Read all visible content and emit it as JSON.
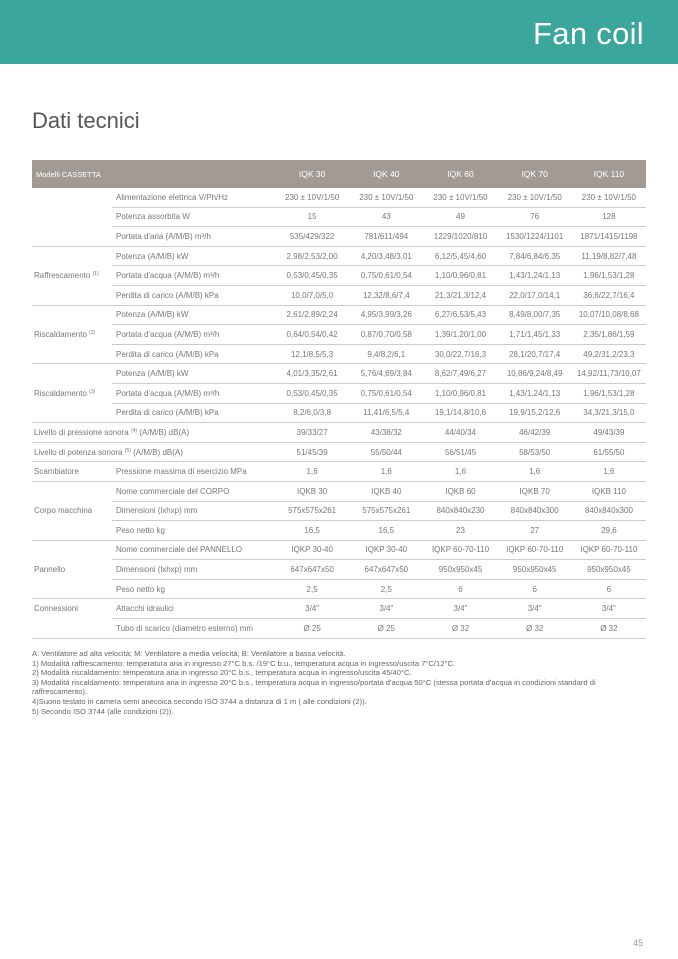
{
  "header": {
    "title": "Fan coil",
    "color": "#3aa69c"
  },
  "section_title": "Dati tecnici",
  "table": {
    "header_color": "#a39a94",
    "models_label": "Modelli CASSETTA",
    "models": [
      "IQK 30",
      "IQK 40",
      "IQK 60",
      "IQK 70",
      "IQK 110"
    ],
    "groups": [
      {
        "label": "",
        "sup": "",
        "rows": [
          {
            "label": "Alimentazione elettrica V/Ph/Hz",
            "values": [
              "230 ± 10V/1/50",
              "230 ± 10V/1/50",
              "230 ± 10V/1/50",
              "230 ± 10V/1/50",
              "230 ± 10V/1/50"
            ]
          },
          {
            "label": "Potenza assorbita W",
            "values": [
              "15",
              "43",
              "49",
              "76",
              "128"
            ]
          },
          {
            "label": "Portata d'aria (A/M/B) m³/h",
            "values": [
              "535/429/322",
              "781/611/494",
              "1229/1020/810",
              "1530/1224/1101",
              "1871/1415/1198"
            ]
          }
        ]
      },
      {
        "label": "Raffrescamento",
        "sup": "(1)",
        "rows": [
          {
            "label": "Potenza (A/M/B) kW",
            "values": [
              "2,98/2,53/2,00",
              "4,20/3,48/3,01",
              "6,12/5,45/4,60",
              "7,84/6,84/6,35",
              "11,19/8,82/7,48"
            ]
          },
          {
            "label": "Portata d'acqua (A/M/B) m³/h",
            "values": [
              "0,53/0,45/0,35",
              "0,75/0,61/0,54",
              "1,10/0,96/0,81",
              "1,43/1,24/1,13",
              "1,96/1,53/1,28"
            ]
          },
          {
            "label": "Perdita di carico (A/M/B) kPa",
            "values": [
              "10,0/7,0/5,0",
              "12,32/8,6/7,4",
              "21,3/21,3/12,4",
              "22,0/17,0/14,1",
              "36,6/22,7/16,4"
            ]
          }
        ]
      },
      {
        "label": "Riscaldamento",
        "sup": "(2)",
        "rows": [
          {
            "label": "Potenza (A/M/B) kW",
            "values": [
              "2,61/2,89/2,24",
              "4,95/3,99/3,26",
              "6,27/6,53/5,43",
              "8,49/8,00/7,35",
              "10,07/10,08/8,68"
            ]
          },
          {
            "label": "Portata d'acqua (A/M/B) m³/h",
            "values": [
              "0,64/0,54/0,42",
              "0,87/0,70/0,58",
              "1,39/1,20/1,00",
              "1,71/1,45/1,33",
              "2,35/1,86/1,59"
            ]
          },
          {
            "label": "Perdita di carico (A/M/B) kPa",
            "values": [
              "12,1/8,5/5,3",
              "9,4/8,2/6,1",
              "30,0/22,7/16,3",
              "28,1/20,7/17,4",
              "49,2/31,2/23,3"
            ]
          }
        ]
      },
      {
        "label": "Riscaldamento",
        "sup": "(3)",
        "rows": [
          {
            "label": "Potenza (A/M/B) kW",
            "values": [
              "4,01/3,35/2,61",
              "5,76/4,69/3,84",
              "8,62/7,49/6,27",
              "10,86/9,24/8,49",
              "14,92/11,73/10,07"
            ]
          },
          {
            "label": "Portata d'acqua (A/M/B) m³/h",
            "values": [
              "0,53/0,45/0,35",
              "0,75/0,61/0,54",
              "1,10/0,96/0,81",
              "1,43/1,24/1,13",
              "1,96/1,53/1,28"
            ]
          },
          {
            "label": "Perdita di carico (A/M/B) kPa",
            "values": [
              "8,2/6,0/3,8",
              "11,41/6,5/5,4",
              "19,1/14,8/10,6",
              "19,9/15,2/12,6",
              "34,3/21,3/15,0"
            ]
          }
        ]
      },
      {
        "full": true,
        "label": "Livello di pressione sonora",
        "sup": "(4)",
        "suffix": "(A/M/B) dB(A)",
        "values": [
          "39/33/27",
          "43/38/32",
          "44/40/34",
          "46/42/39",
          "49/43/39"
        ]
      },
      {
        "full": true,
        "label": "Livello di potenza sonora",
        "sup": "(5)",
        "suffix": "(A/M/B) dB(A)",
        "values": [
          "51/45/39",
          "55/50/44",
          "56/51/45",
          "58/53/50",
          "61/55/50"
        ]
      },
      {
        "label": "Scambiatore",
        "sup": "",
        "rows": [
          {
            "label": "Pressione massima di esercizio MPa",
            "values": [
              "1,6",
              "1,6",
              "1,6",
              "1,6",
              "1,6"
            ]
          }
        ]
      },
      {
        "label": "Corpo macchina",
        "sup": "",
        "rows": [
          {
            "label": "Nome commerciale del CORPO",
            "values": [
              "IQKB 30",
              "IQKB 40",
              "IQKB 60",
              "IQKB 70",
              "IQKB 110"
            ]
          },
          {
            "label": "Dimensioni (lxhxp) mm",
            "values": [
              "575x575x261",
              "575x575x261",
              "840x840x230",
              "840x840x300",
              "840x840x300"
            ]
          },
          {
            "label": "Peso netto kg",
            "values": [
              "16,5",
              "16,5",
              "23",
              "27",
              "29,6"
            ]
          }
        ]
      },
      {
        "label": "Pannello",
        "sup": "",
        "rows": [
          {
            "label": "Nome commerciale del PANNELLO",
            "values": [
              "IQKP 30-40",
              "IQKP 30-40",
              "IQKP 60-70-110",
              "IQKP 60-70-110",
              "IQKP 60-70-110"
            ]
          },
          {
            "label": "Dimensioni (lxhxp) mm",
            "values": [
              "647x647x50",
              "647x647x50",
              "950x950x45",
              "950x950x45",
              "950x950x45"
            ]
          },
          {
            "label": "Peso netto kg",
            "values": [
              "2,5",
              "2,5",
              "6",
              "6",
              "6"
            ]
          }
        ]
      },
      {
        "label": "Connessioni",
        "sup": "",
        "rows": [
          {
            "label": "Attacchi idraulici",
            "values": [
              "3/4\"",
              "3/4\"",
              "3/4\"",
              "3/4\"",
              "3/4\""
            ]
          },
          {
            "label": "Tubo di scarico (diametro esterno) mm",
            "values": [
              "Ø 25",
              "Ø 25",
              "Ø 32",
              "Ø 32",
              "Ø 32"
            ]
          }
        ]
      }
    ]
  },
  "notes": [
    "A: Ventilatore ad alta velocità; M: Ventilatore a media velocità; B: Ventilatore a bassa velocità.",
    "1) Modalità raffrescamento: temperatura aria in ingresso 27°C b.s. /19°C b.u., temperatura acqua in ingresso/uscita 7°C/12°C.",
    "2) Modalità riscaldamento: temperatura aria in ingresso 20°C b.s., temperatura acqua in ingresso/uscita 45/40°C.",
    "3) Modalità riscaldamento: temperatura aria in ingresso 20°C b.s., temperatura acqua in ingresso/portata d'acqua 50°C (stessa portata d'acqua in condizioni standard di raffrescamento).",
    "4)Suono testato in camera semi anecoica secondo ISO 3744 a distanza di 1 m ( alle condizioni (2)).",
    "5) Secondo ISO 3744 (alle condizioni (2))."
  ],
  "page_number": "45"
}
